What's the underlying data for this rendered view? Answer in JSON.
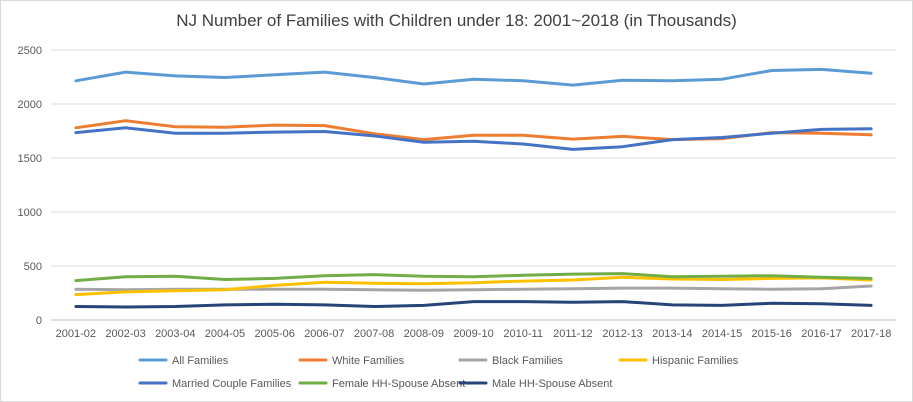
{
  "chart_data": {
    "type": "line",
    "title": "NJ Number of Families with Children under 18: 2001~2018 (in Thousands)",
    "xlabel": "",
    "ylabel": "",
    "ylim": [
      0,
      2500
    ],
    "yticks": [
      0,
      500,
      1000,
      1500,
      2000,
      2500
    ],
    "ytick_labels": [
      "0",
      "500",
      "1000",
      "1500",
      "2000",
      "2500"
    ],
    "grid": true,
    "legend_position": "bottom",
    "categories": [
      "2001-02",
      "2002-03",
      "2003-04",
      "2004-05",
      "2005-06",
      "2006-07",
      "2007-08",
      "2008-09",
      "2009-10",
      "2010-11",
      "2011-12",
      "2012-13",
      "2013-14",
      "2014-15",
      "2015-16",
      "2016-17",
      "2017-18"
    ],
    "series": [
      {
        "name": "All Families",
        "color": "#5B9BD5",
        "values": [
          2215,
          2295,
          2260,
          2245,
          2270,
          2295,
          2245,
          2185,
          2230,
          2215,
          2175,
          2220,
          2215,
          2230,
          2310,
          2320,
          2285
        ]
      },
      {
        "name": "White Families",
        "color": "#ED7D31",
        "values": [
          1780,
          1845,
          1790,
          1785,
          1805,
          1800,
          1725,
          1670,
          1710,
          1710,
          1675,
          1700,
          1670,
          1680,
          1735,
          1730,
          1715
        ]
      },
      {
        "name": "Black Families",
        "color": "#A5A5A5",
        "values": [
          285,
          280,
          285,
          285,
          285,
          285,
          280,
          275,
          280,
          285,
          290,
          295,
          295,
          290,
          285,
          290,
          315
        ]
      },
      {
        "name": "Hispanic Families",
        "color": "#FFC000",
        "values": [
          235,
          260,
          270,
          280,
          320,
          350,
          340,
          335,
          345,
          360,
          370,
          395,
          380,
          375,
          385,
          390,
          370
        ]
      },
      {
        "name": "Married Couple Families",
        "color": "#4472C4",
        "values": [
          1735,
          1780,
          1730,
          1730,
          1740,
          1745,
          1705,
          1645,
          1655,
          1630,
          1580,
          1605,
          1670,
          1690,
          1730,
          1765,
          1770
        ]
      },
      {
        "name": "Female HH-Spouse Absent",
        "color": "#70AD47",
        "values": [
          365,
          400,
          405,
          375,
          385,
          410,
          420,
          405,
          400,
          415,
          425,
          430,
          400,
          405,
          410,
          395,
          385
        ]
      },
      {
        "name": "Male HH-Spouse Absent",
        "color": "#264478",
        "values": [
          125,
          120,
          125,
          140,
          145,
          140,
          125,
          135,
          170,
          170,
          165,
          170,
          140,
          135,
          155,
          150,
          135
        ]
      }
    ]
  }
}
